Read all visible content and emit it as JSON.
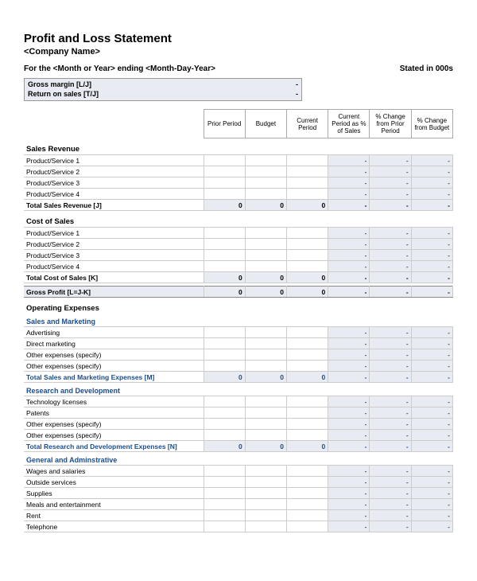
{
  "title": "Profit and Loss Statement",
  "company": "<Company Name>",
  "period_label": "For the  <Month or Year> ending  <Month-Day-Year>",
  "stated_in": "Stated in 000s",
  "summary": [
    {
      "label": "Gross margin  [L/J]",
      "value": "-"
    },
    {
      "label": "Return on sales  [T/J]",
      "value": "-"
    }
  ],
  "columns": [
    "Prior Period",
    "Budget",
    "Current Period",
    "Current Period as % of Sales",
    "% Change from Prior Period",
    "% Change from Budget"
  ],
  "colors": {
    "shaded_bg": "#e8ecf2",
    "blue_text": "#1a4d8f",
    "border": "#cccccc"
  },
  "sections": [
    {
      "heading": "Sales Revenue",
      "heading_blue": false,
      "rows": [
        {
          "label": "Product/Service 1",
          "c": [
            "",
            "",
            "",
            "-",
            "-",
            "-"
          ]
        },
        {
          "label": "Product/Service 2",
          "c": [
            "",
            "",
            "",
            "-",
            "-",
            "-"
          ]
        },
        {
          "label": "Product/Service 3",
          "c": [
            "",
            "",
            "",
            "-",
            "-",
            "-"
          ]
        },
        {
          "label": "Product/Service 4",
          "c": [
            "",
            "",
            "",
            "-",
            "-",
            "-"
          ]
        }
      ],
      "total": {
        "label": "Total Sales Revenue  [J]",
        "blue": false,
        "c": [
          "0",
          "0",
          "0",
          "-",
          "-",
          "-"
        ]
      }
    },
    {
      "heading": "Cost of Sales",
      "heading_blue": false,
      "rows": [
        {
          "label": "Product/Service 1",
          "c": [
            "",
            "",
            "",
            "-",
            "-",
            "-"
          ]
        },
        {
          "label": "Product/Service 2",
          "c": [
            "",
            "",
            "",
            "-",
            "-",
            "-"
          ]
        },
        {
          "label": "Product/Service 3",
          "c": [
            "",
            "",
            "",
            "-",
            "-",
            "-"
          ]
        },
        {
          "label": "Product/Service 4",
          "c": [
            "",
            "",
            "",
            "-",
            "-",
            "-"
          ]
        }
      ],
      "total": {
        "label": "Total Cost of Sales  [K]",
        "blue": false,
        "c": [
          "0",
          "0",
          "0",
          "-",
          "-",
          "-"
        ]
      }
    }
  ],
  "grand": {
    "label": "Gross Profit  [L=J-K]",
    "c": [
      "0",
      "0",
      "0",
      "-",
      "-",
      "-"
    ]
  },
  "op_heading": "Operating Expenses",
  "op_sections": [
    {
      "sub": "Sales and Marketing",
      "rows": [
        {
          "label": "Advertising",
          "c": [
            "",
            "",
            "",
            "-",
            "-",
            "-"
          ]
        },
        {
          "label": "Direct marketing",
          "c": [
            "",
            "",
            "",
            "-",
            "-",
            "-"
          ]
        },
        {
          "label": "Other expenses (specify)",
          "c": [
            "",
            "",
            "",
            "-",
            "-",
            "-"
          ]
        },
        {
          "label": "Other expenses (specify)",
          "c": [
            "",
            "",
            "",
            "-",
            "-",
            "-"
          ]
        }
      ],
      "total": {
        "label": "Total Sales and Marketing Expenses  [M]",
        "c": [
          "0",
          "0",
          "0",
          "-",
          "-",
          "-"
        ]
      }
    },
    {
      "sub": "Research and Development",
      "rows": [
        {
          "label": "Technology licenses",
          "c": [
            "",
            "",
            "",
            "-",
            "-",
            "-"
          ]
        },
        {
          "label": "Patents",
          "c": [
            "",
            "",
            "",
            "-",
            "-",
            "-"
          ]
        },
        {
          "label": "Other expenses (specify)",
          "c": [
            "",
            "",
            "",
            "-",
            "-",
            "-"
          ]
        },
        {
          "label": "Other expenses (specify)",
          "c": [
            "",
            "",
            "",
            "-",
            "-",
            "-"
          ]
        }
      ],
      "total": {
        "label": "Total Research and Development Expenses  [N]",
        "c": [
          "0",
          "0",
          "0",
          "-",
          "-",
          "-"
        ]
      }
    },
    {
      "sub": "General and Adminstrative",
      "rows": [
        {
          "label": "Wages and salaries",
          "c": [
            "",
            "",
            "",
            "-",
            "-",
            "-"
          ]
        },
        {
          "label": "Outside services",
          "c": [
            "",
            "",
            "",
            "-",
            "-",
            "-"
          ]
        },
        {
          "label": "Supplies",
          "c": [
            "",
            "",
            "",
            "-",
            "-",
            "-"
          ]
        },
        {
          "label": "Meals and entertainment",
          "c": [
            "",
            "",
            "",
            "-",
            "-",
            "-"
          ]
        },
        {
          "label": "Rent",
          "c": [
            "",
            "",
            "",
            "-",
            "-",
            "-"
          ]
        },
        {
          "label": "Telephone",
          "c": [
            "",
            "",
            "",
            "-",
            "-",
            "-"
          ]
        }
      ]
    }
  ]
}
